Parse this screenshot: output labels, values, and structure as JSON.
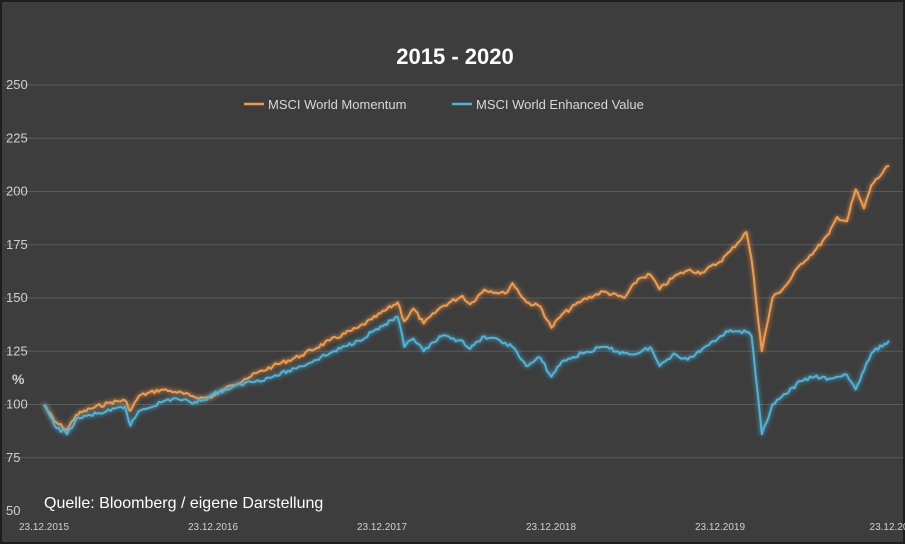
{
  "chart_data": {
    "type": "line",
    "title": "2015 - 2020",
    "ylabel": "%",
    "ylim": [
      50,
      250
    ],
    "yticks": [
      50,
      75,
      100,
      125,
      150,
      175,
      200,
      225,
      250
    ],
    "xlim": [
      "2015-12-23",
      "2020-12-23"
    ],
    "xticks": [
      "23.12.2015",
      "23.12.2016",
      "23.12.2017",
      "23.12.2018",
      "23.12.2019",
      "23.12.20"
    ],
    "grid": true,
    "legend_position": "top-center",
    "source": "Quelle: Bloomberg / eigene Darstellung",
    "series": [
      {
        "name": "MSCI World Momentum",
        "color": "#f29a4a",
        "x": [
          "2015-12-23",
          "2016-01-15",
          "2016-02-11",
          "2016-03-01",
          "2016-04-01",
          "2016-05-15",
          "2016-06-15",
          "2016-06-27",
          "2016-07-15",
          "2016-09-01",
          "2016-10-01",
          "2016-11-04",
          "2016-12-01",
          "2016-12-23",
          "2017-02-01",
          "2017-03-01",
          "2017-05-01",
          "2017-07-01",
          "2017-09-01",
          "2017-11-01",
          "2017-12-01",
          "2018-01-26",
          "2018-02-09",
          "2018-03-01",
          "2018-03-23",
          "2018-05-01",
          "2018-06-15",
          "2018-07-01",
          "2018-08-01",
          "2018-09-15",
          "2018-10-01",
          "2018-10-31",
          "2018-11-30",
          "2018-12-24",
          "2019-01-15",
          "2019-03-01",
          "2019-04-15",
          "2019-05-31",
          "2019-06-30",
          "2019-07-26",
          "2019-08-15",
          "2019-09-15",
          "2019-10-15",
          "2019-11-15",
          "2019-12-23",
          "2020-01-15",
          "2020-02-19",
          "2020-03-01",
          "2020-03-23",
          "2020-04-15",
          "2020-05-15",
          "2020-06-15",
          "2020-07-15",
          "2020-08-15",
          "2020-09-02",
          "2020-09-23",
          "2020-10-12",
          "2020-10-30",
          "2020-11-15",
          "2020-12-23"
        ],
        "y": [
          100,
          92,
          88,
          95,
          98,
          101,
          102,
          97,
          104,
          107,
          106,
          104,
          103,
          104,
          109,
          112,
          118,
          123,
          130,
          136,
          140,
          148,
          139,
          145,
          138,
          146,
          151,
          147,
          154,
          152,
          157,
          148,
          146,
          136,
          142,
          149,
          153,
          150,
          159,
          161,
          154,
          160,
          163,
          162,
          167,
          172,
          181,
          168,
          125,
          150,
          156,
          166,
          172,
          180,
          188,
          186,
          201,
          192,
          203,
          212
        ]
      },
      {
        "name": "MSCI World Enhanced Value",
        "color": "#4db3d8",
        "x": [
          "2015-12-23",
          "2016-01-15",
          "2016-02-11",
          "2016-03-01",
          "2016-04-01",
          "2016-05-15",
          "2016-06-15",
          "2016-06-27",
          "2016-07-15",
          "2016-09-01",
          "2016-10-01",
          "2016-11-04",
          "2016-12-01",
          "2016-12-23",
          "2017-02-01",
          "2017-03-01",
          "2017-05-01",
          "2017-07-01",
          "2017-09-01",
          "2017-11-01",
          "2017-12-01",
          "2018-01-26",
          "2018-02-09",
          "2018-03-01",
          "2018-03-23",
          "2018-05-01",
          "2018-06-15",
          "2018-07-01",
          "2018-08-01",
          "2018-09-15",
          "2018-10-01",
          "2018-10-31",
          "2018-11-30",
          "2018-12-24",
          "2019-01-15",
          "2019-03-01",
          "2019-04-15",
          "2019-05-31",
          "2019-06-30",
          "2019-07-26",
          "2019-08-15",
          "2019-09-15",
          "2019-10-15",
          "2019-11-15",
          "2019-12-23",
          "2020-01-15",
          "2020-02-19",
          "2020-03-01",
          "2020-03-23",
          "2020-04-15",
          "2020-05-15",
          "2020-06-15",
          "2020-07-15",
          "2020-08-15",
          "2020-09-02",
          "2020-09-23",
          "2020-10-12",
          "2020-10-30",
          "2020-11-15",
          "2020-12-23"
        ],
        "y": [
          100,
          90,
          86,
          93,
          95,
          97,
          99,
          90,
          97,
          101,
          103,
          101,
          102,
          105,
          108,
          110,
          113,
          118,
          124,
          130,
          134,
          141,
          127,
          131,
          125,
          132,
          130,
          126,
          132,
          129,
          127,
          118,
          122,
          113,
          120,
          124,
          127,
          124,
          124,
          127,
          118,
          124,
          121,
          126,
          132,
          135,
          134,
          132,
          86,
          100,
          105,
          111,
          113,
          112,
          113,
          114,
          107,
          116,
          124,
          130
        ]
      }
    ]
  }
}
